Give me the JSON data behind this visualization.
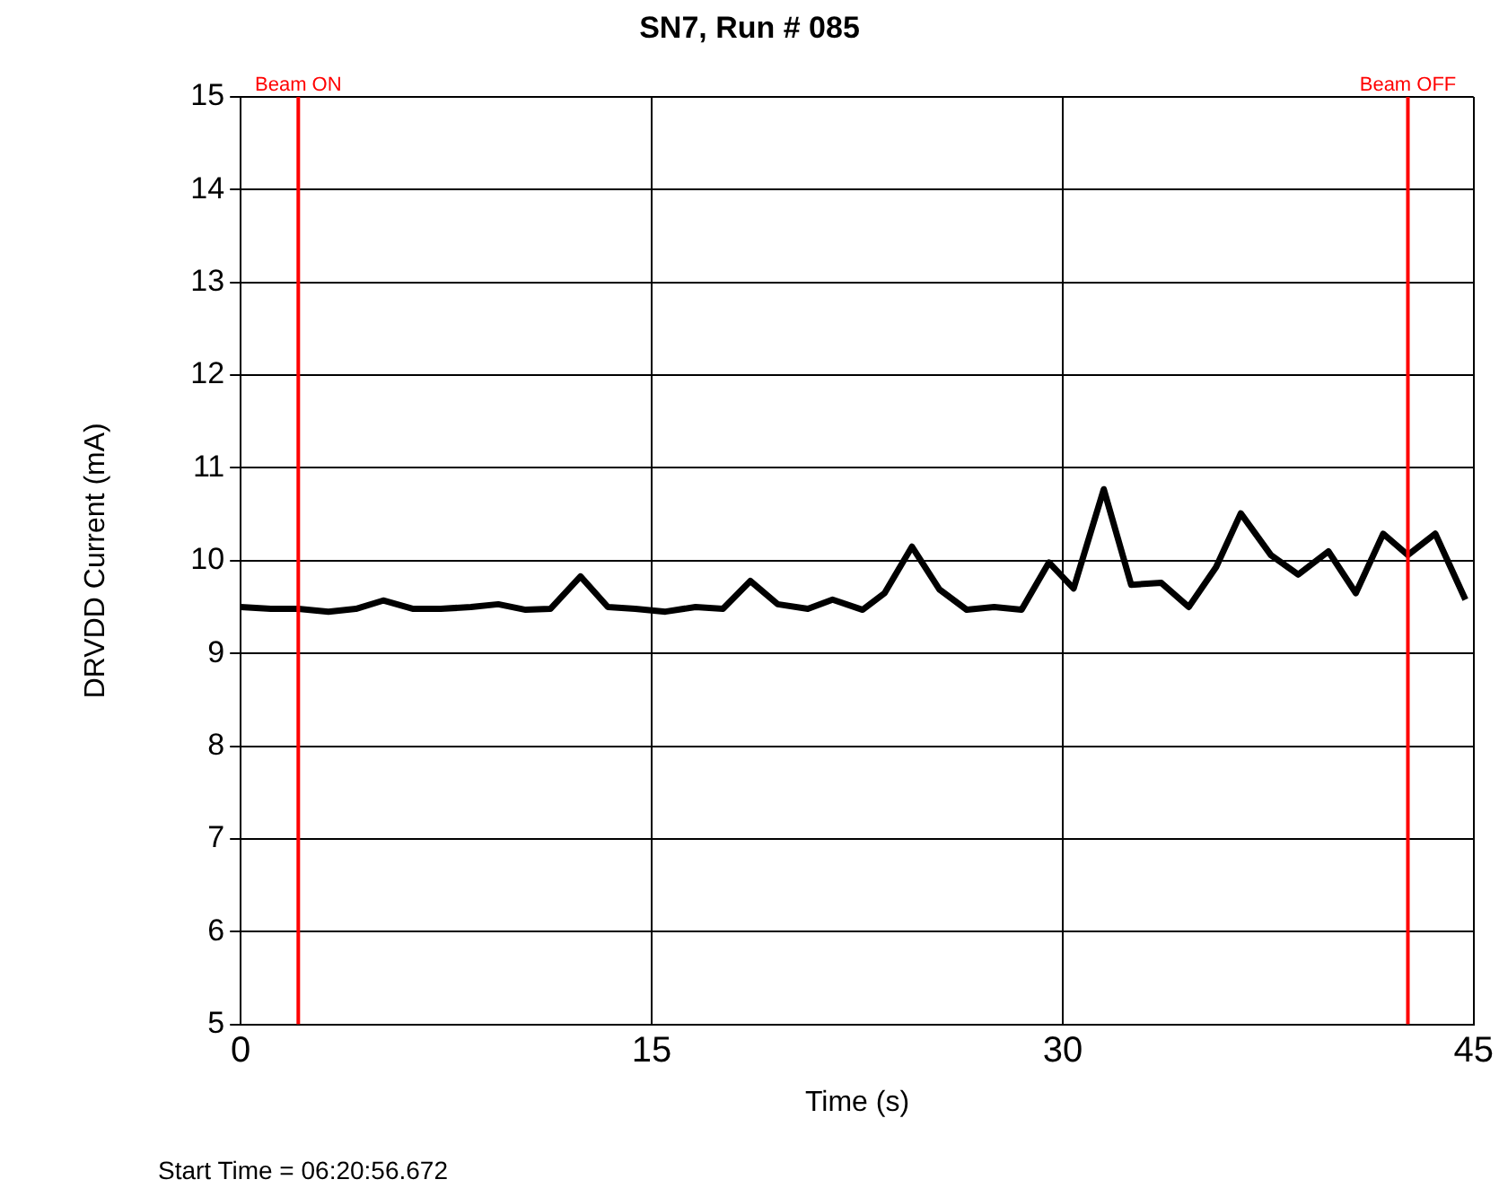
{
  "chart_data": {
    "type": "line",
    "title": "SN7, Run # 085",
    "xlabel": "Time (s)",
    "ylabel": "DRVDD Current (mA)",
    "x": [
      0,
      1.1,
      2.1,
      3.2,
      4.2,
      5.2,
      6.3,
      7.3,
      8.4,
      9.4,
      10.4,
      11.3,
      12.4,
      13.4,
      14.4,
      15.5,
      16.6,
      17.6,
      18.6,
      19.6,
      20.7,
      21.6,
      22.7,
      23.5,
      24.5,
      25.5,
      26.5,
      27.5,
      28.5,
      29.5,
      30.4,
      31.5,
      32.5,
      33.6,
      34.6,
      35.6,
      36.5,
      37.6,
      38.6,
      39.7,
      40.7,
      41.7,
      42.6,
      43.6,
      44.7
    ],
    "series": [
      {
        "color": "#000000",
        "values": [
          9.5,
          9.48,
          9.48,
          9.45,
          9.48,
          9.57,
          9.48,
          9.48,
          9.5,
          9.53,
          9.47,
          9.48,
          9.83,
          9.5,
          9.48,
          9.45,
          9.5,
          9.48,
          9.78,
          9.53,
          9.48,
          9.58,
          9.47,
          9.65,
          10.15,
          9.69,
          9.47,
          9.5,
          9.47,
          9.98,
          9.7,
          10.77,
          9.74,
          9.76,
          9.5,
          9.93,
          10.51,
          10.06,
          9.85,
          10.1,
          9.65,
          10.29,
          10.06,
          10.29,
          9.58
        ]
      }
    ],
    "xlim": [
      0,
      45
    ],
    "xticks": [
      0,
      15,
      30,
      45
    ],
    "ylim": [
      5,
      15
    ],
    "yticks": [
      5,
      6,
      7,
      8,
      9,
      10,
      11,
      12,
      13,
      14,
      15
    ],
    "grid": true,
    "legend": false,
    "marker": "none",
    "line_style": "solid",
    "ref_lines": [
      {
        "axis": "x",
        "value": 2.1,
        "label": "Beam ON",
        "color": "#ff0000"
      },
      {
        "axis": "x",
        "value": 42.6,
        "label": "Beam OFF",
        "color": "#ff0000"
      }
    ],
    "annotations": [
      "Start Time = 06:20:56.672"
    ]
  }
}
